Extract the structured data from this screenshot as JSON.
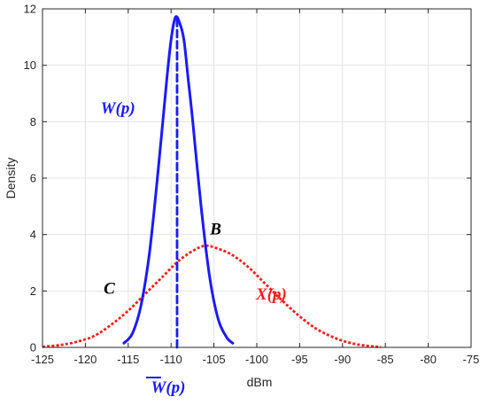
{
  "chart_data": {
    "type": "line",
    "xlabel": "dBm",
    "ylabel": "Density",
    "xlim": [
      -125,
      -75
    ],
    "ylim": [
      0,
      12
    ],
    "xticks": [
      -125,
      -120,
      -115,
      -110,
      -105,
      -100,
      -95,
      -90,
      -85,
      -80,
      -75
    ],
    "yticks": [
      0,
      2,
      4,
      6,
      8,
      10,
      12
    ],
    "grid": true,
    "series": [
      {
        "label": "W(p)",
        "style": "solid",
        "color": "#1a1aff",
        "x": [
          -115.5,
          -114.5,
          -113.5,
          -112.5,
          -111.5,
          -110.5,
          -110.0,
          -109.5,
          -109.0,
          -108.5,
          -108.0,
          -107.5,
          -106.5,
          -105.5,
          -104.5,
          -103.5,
          -102.8
        ],
        "y": [
          0.15,
          0.5,
          1.5,
          3.4,
          6.3,
          9.5,
          10.9,
          11.7,
          11.5,
          10.9,
          9.5,
          8.1,
          5.0,
          2.5,
          1.0,
          0.35,
          0.15
        ]
      },
      {
        "label": "X(p)",
        "style": "dotted",
        "color": "#ff1a1a",
        "x": [
          -125,
          -123,
          -121,
          -119,
          -117,
          -115,
          -113,
          -111,
          -109,
          -107,
          -106,
          -105,
          -103,
          -101,
          -99,
          -97,
          -95,
          -93,
          -91,
          -89,
          -87,
          -85.5
        ],
        "y": [
          0.02,
          0.08,
          0.2,
          0.4,
          0.8,
          1.3,
          1.9,
          2.5,
          3.1,
          3.5,
          3.6,
          3.55,
          3.3,
          2.85,
          2.25,
          1.65,
          1.1,
          0.65,
          0.35,
          0.15,
          0.05,
          0.01
        ]
      },
      {
        "label": "W̄(p)",
        "style": "dashed",
        "color": "#1a1aff",
        "x": [
          -109.3,
          -109.3
        ],
        "y": [
          0,
          11.7
        ]
      }
    ],
    "annotations": [
      {
        "text": "W(p)",
        "x": -116.2,
        "y": 8.3,
        "color": "#1a1aff"
      },
      {
        "text": "X(p)",
        "x": -98.3,
        "y": 1.7,
        "color": "#ff1a1a"
      },
      {
        "text": "B",
        "x": -104.8,
        "y": 4.0,
        "color": "#000000"
      },
      {
        "text": "C",
        "x": -117.2,
        "y": 1.9,
        "color": "#000000"
      }
    ],
    "below_axis_label": {
      "text": "W(p)",
      "color": "#1a1aff"
    }
  }
}
